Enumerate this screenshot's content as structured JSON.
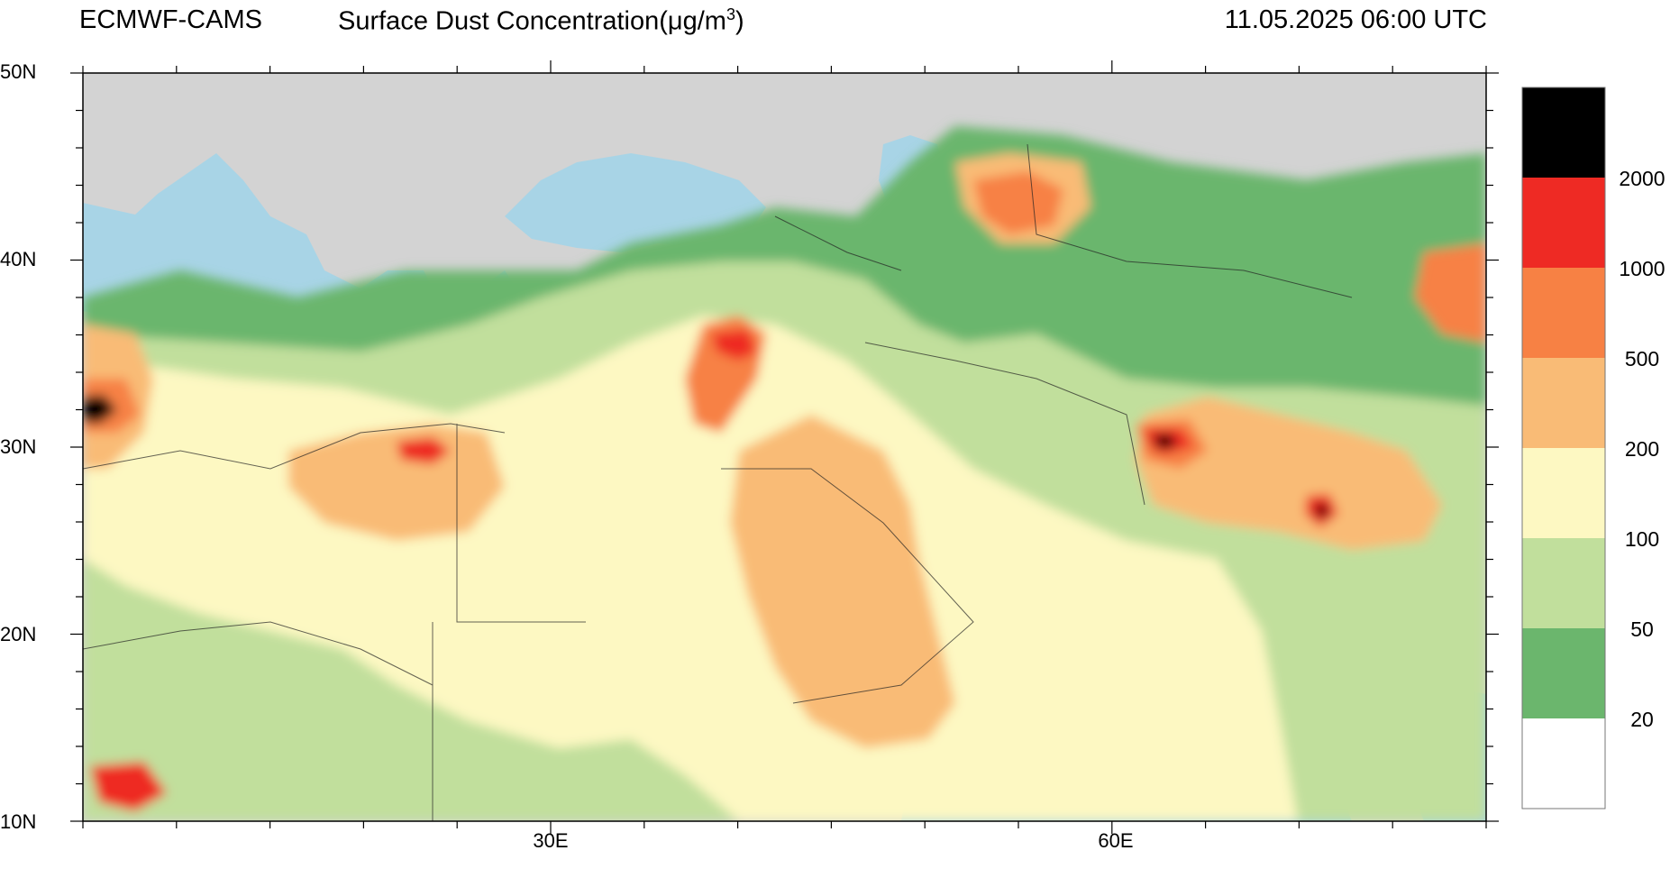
{
  "header": {
    "model": "ECMWF-CAMS",
    "variable": "Surface Dust Concentration(μg/m",
    "unit_exponent": "3",
    "unit_close": ")",
    "valid_time": "11.05.2025 06:00 UTC"
  },
  "map": {
    "lat_labels": [
      "50N",
      "40N",
      "30N",
      "20N",
      "10N"
    ],
    "lon_labels": [
      "30E",
      "60E"
    ],
    "ocean_color": "#a8d4e6",
    "land_no_data_color": "#d3d3d3"
  },
  "colorbar": {
    "labels": [
      "2000",
      "1000",
      "500",
      "200",
      "100",
      "50",
      "20"
    ],
    "colors": [
      "#000000",
      "#ee2a24",
      "#f78144",
      "#f9bb76",
      "#fdf8c2",
      "#c1df9c",
      "#6bb66d",
      "#ffffff"
    ]
  }
}
